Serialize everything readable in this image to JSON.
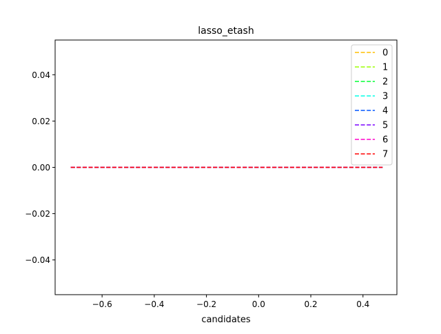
{
  "chart_data": {
    "type": "line",
    "title": "lasso_etash",
    "xlabel": "candidates",
    "ylabel": "",
    "xlim": [
      -0.78,
      0.53
    ],
    "ylim": [
      -0.055,
      0.055
    ],
    "xticks": [
      -0.6,
      -0.4,
      -0.2,
      0.0,
      0.2,
      0.4
    ],
    "xtick_labels": [
      "−0.6",
      "−0.4",
      "−0.2",
      "0.0",
      "0.2",
      "0.4"
    ],
    "yticks": [
      0.04,
      0.02,
      0.0,
      -0.02,
      -0.04
    ],
    "ytick_labels": [
      "0.04",
      "0.02",
      "0.00",
      "−0.02",
      "−0.04"
    ],
    "grid": false,
    "legend_position": "top-right",
    "line_style": "dashed",
    "x": [
      -0.72,
      0.475
    ],
    "series": [
      {
        "name": "0",
        "color": "#ffbf00",
        "values": [
          0,
          0
        ]
      },
      {
        "name": "1",
        "color": "#9cff00",
        "values": [
          0,
          0
        ]
      },
      {
        "name": "2",
        "color": "#00ff33",
        "values": [
          0,
          0
        ]
      },
      {
        "name": "3",
        "color": "#00ffe6",
        "values": [
          0,
          0
        ]
      },
      {
        "name": "4",
        "color": "#0055ff",
        "values": [
          0,
          0
        ]
      },
      {
        "name": "5",
        "color": "#7a00ff",
        "values": [
          0,
          0
        ]
      },
      {
        "name": "6",
        "color": "#ff00cc",
        "values": [
          0,
          0
        ]
      },
      {
        "name": "7",
        "color": "#ff0000",
        "values": [
          0,
          0
        ]
      }
    ]
  }
}
